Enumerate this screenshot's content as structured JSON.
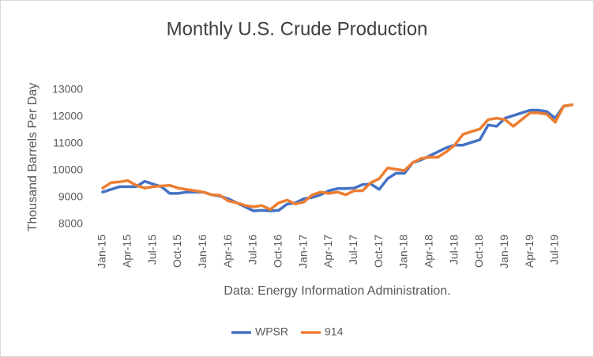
{
  "chart_data": {
    "type": "line",
    "title": "Monthly U.S. Crude Production",
    "y_label": "Thousand Barrels Per Day",
    "caption": "Data: Energy Information Administration.",
    "categories": [
      "Jan-15",
      null,
      null,
      "Apr-15",
      null,
      null,
      "Jul-15",
      null,
      null,
      "Oct-15",
      null,
      null,
      "Jan-16",
      null,
      null,
      "Apr-16",
      null,
      null,
      "Jul-16",
      null,
      null,
      "Oct-16",
      null,
      null,
      "Jan-17",
      null,
      null,
      "Apr-17",
      null,
      null,
      "Jul-17",
      null,
      null,
      "Oct-17",
      null,
      null,
      "Jan-18",
      null,
      null,
      "Apr-18",
      null,
      null,
      "Jul-18",
      null,
      null,
      "Oct-18",
      null,
      null,
      "Jan-19",
      null,
      null,
      "Apr-19",
      null,
      null,
      "Jul-19",
      null,
      null
    ],
    "series": [
      {
        "name": "WPSR",
        "color": "#4472c4",
        "values": [
          9200,
          9300,
          9400,
          9400,
          9400,
          9600,
          9500,
          9400,
          9150,
          9150,
          9200,
          9200,
          9200,
          9100,
          9050,
          8950,
          8800,
          8650,
          8500,
          8520,
          8500,
          8520,
          8750,
          8800,
          8950,
          9000,
          9100,
          9250,
          9330,
          9330,
          9350,
          9480,
          9500,
          9300,
          9700,
          9900,
          9900,
          10300,
          10400,
          10550,
          10700,
          10850,
          10950,
          10950,
          11050,
          11150,
          11700,
          11650,
          11950,
          12050,
          12150,
          12250,
          12250,
          12200,
          11950,
          12400,
          12450
        ]
      },
      {
        "name": "914",
        "color": "#ed7d31",
        "values": [
          9350,
          9550,
          9580,
          9630,
          9450,
          9350,
          9400,
          9430,
          9450,
          9350,
          9300,
          9250,
          9200,
          9100,
          9080,
          8870,
          8800,
          8700,
          8650,
          8700,
          8550,
          8800,
          8900,
          8760,
          8830,
          9090,
          9200,
          9150,
          9200,
          9100,
          9250,
          9250,
          9550,
          9700,
          10100,
          10050,
          10000,
          10300,
          10450,
          10500,
          10500,
          10700,
          10950,
          11350,
          11450,
          11550,
          11900,
          11950,
          11900,
          11650,
          11900,
          12150,
          12150,
          12100,
          11800,
          12400,
          12450
        ]
      }
    ],
    "ylim": [
      8000,
      13000
    ],
    "yticks": [
      8000,
      9000,
      10000,
      11000,
      12000,
      13000
    ],
    "grid": false,
    "legend": "bottom"
  }
}
